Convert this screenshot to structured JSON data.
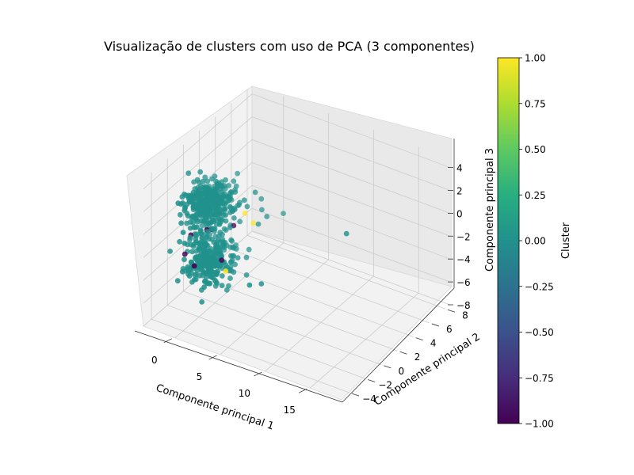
{
  "chart_data": {
    "type": "scatter",
    "projection": "3d",
    "title": "Visualização de clusters com uso de PCA (3 componentes)",
    "xlabel": "Componente principal 1",
    "ylabel": "Componente principal 2",
    "zlabel": "Componente principal 3",
    "xlim": [
      -3.5,
      18.5
    ],
    "ylim": [
      -5,
      8.6
    ],
    "zlim": [
      -8,
      4.8
    ],
    "xticks": [
      "0",
      "5",
      "10",
      "15"
    ],
    "yticks": [
      "−4",
      "−2",
      "0",
      "2",
      "4",
      "6",
      "8"
    ],
    "zticks": [
      "−8",
      "−6",
      "−4",
      "−2",
      "0",
      "2",
      "4"
    ],
    "grid": true,
    "colormap": "viridis",
    "colorbar": {
      "label": "Cluster",
      "range": [
        -1,
        1
      ],
      "ticks": [
        "−1.00",
        "−0.75",
        "−0.50",
        "−0.25",
        "0.00",
        "0.25",
        "0.50",
        "0.75",
        "1.00"
      ]
    },
    "clusters": [
      {
        "value": 0,
        "color": "#21918c",
        "note": "dense main cloud of several hundred points centred near PC1≈-1, PC2≈0, PC3 between -6 and 1"
      },
      {
        "value": -1,
        "color": "#440154"
      },
      {
        "value": 1,
        "color": "#fde725"
      }
    ],
    "points": [
      [
        -2.4,
        -0.6,
        3.0,
        0
      ],
      [
        -1.8,
        0.2,
        2.8,
        0
      ],
      [
        15.5,
        -1.0,
        3.2,
        0
      ],
      [
        4.5,
        3.5,
        -1.0,
        0
      ],
      [
        4.0,
        2.0,
        -0.5,
        0
      ],
      [
        3.5,
        1.5,
        -1.0,
        0
      ],
      [
        2.5,
        3.0,
        0.0,
        0
      ],
      [
        3.0,
        2.5,
        -0.5,
        0
      ],
      [
        2.8,
        -1.8,
        -3.3,
        1
      ],
      [
        5.8,
        -2.2,
        -3.4,
        0
      ],
      [
        6.4,
        -1.4,
        -3.6,
        0
      ],
      [
        -3.2,
        -2.0,
        -3.2,
        0
      ],
      [
        -2.0,
        -1.5,
        -3.4,
        -1
      ],
      [
        0.2,
        -2.8,
        -3.0,
        -1
      ],
      [
        0.5,
        -1.0,
        -0.8,
        -1
      ],
      [
        1.2,
        1.0,
        -1.5,
        -1
      ],
      [
        -1.6,
        -1.2,
        -1.8,
        -1
      ],
      [
        1.2,
        -0.5,
        -3.6,
        -1
      ],
      [
        0.0,
        -1.0,
        -1.0,
        -1
      ],
      [
        2.0,
        1.5,
        -0.5,
        1
      ],
      [
        2.5,
        2.0,
        -1.5,
        1
      ]
    ],
    "main_cloud": {
      "cluster": 0,
      "pc1_range": [
        -3,
        3
      ],
      "pc2_range": [
        -3,
        3
      ],
      "pc3_range": [
        -6.5,
        1.5
      ]
    }
  },
  "colors": {
    "pane": "#f2f2f2",
    "pane_side": "#e6e6e6",
    "grid": "#cccccc",
    "viridis": [
      "#440154",
      "#472d7b",
      "#3b528b",
      "#2c728e",
      "#21918c",
      "#28ae80",
      "#5ec962",
      "#addc30",
      "#fde725"
    ]
  }
}
